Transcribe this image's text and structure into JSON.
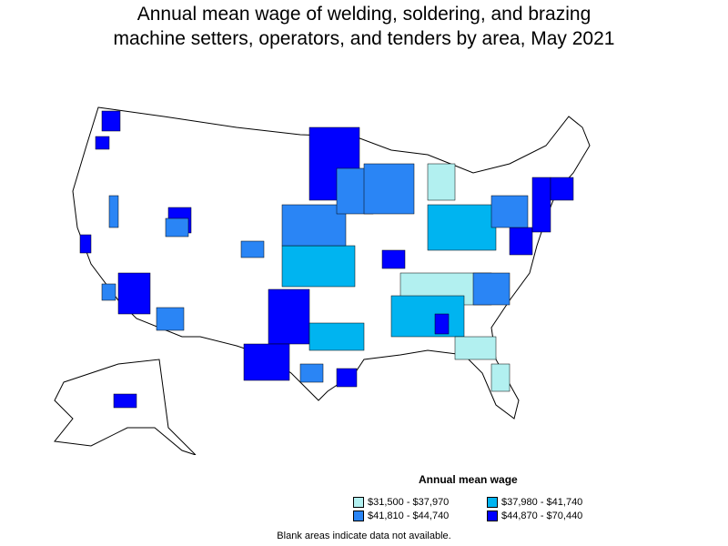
{
  "title_line1": "Annual mean wage of welding, soldering, and brazing",
  "title_line2": "machine setters, operators, and tenders by area, May 2021",
  "legend": {
    "title": "Annual mean wage",
    "items": [
      {
        "label": "$31,500 - $37,970",
        "color": "#b2f0f0"
      },
      {
        "label": "$37,980 - $41,740",
        "color": "#00b4f0"
      },
      {
        "label": "$41,810 - $44,740",
        "color": "#2a85f5"
      },
      {
        "label": "$44,870 - $70,440",
        "color": "#0000ff"
      }
    ]
  },
  "footnote": "Blank areas indicate data not available."
}
